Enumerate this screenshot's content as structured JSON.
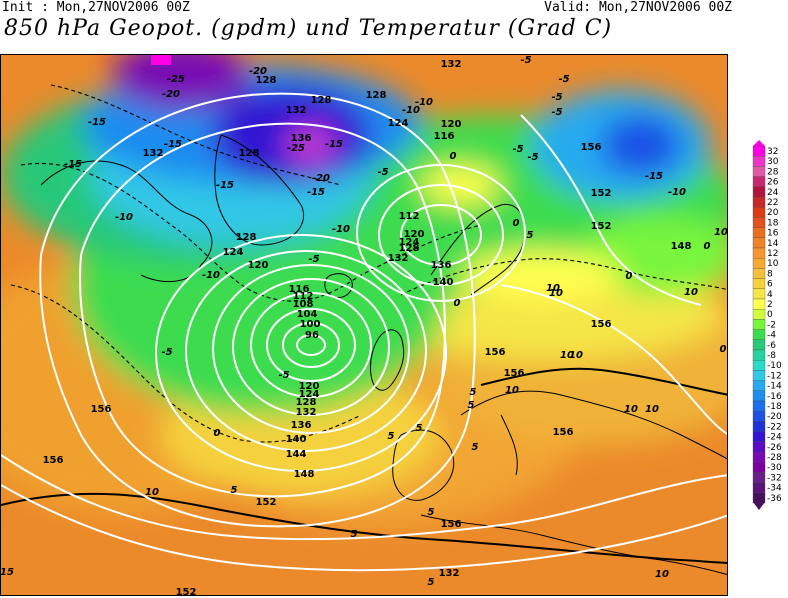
{
  "header": {
    "init": "Init : Mon,27NOV2006 00Z",
    "valid": "Valid: Mon,27NOV2006 00Z",
    "title": "850 hPa Geopot. (gpdm) und Temperatur (Grad C)"
  },
  "legend": {
    "values": [
      "32",
      "30",
      "28",
      "26",
      "24",
      "22",
      "20",
      "18",
      "16",
      "14",
      "12",
      "10",
      "8",
      "6",
      "4",
      "2",
      "0",
      "-2",
      "-4",
      "-6",
      "-8",
      "-10",
      "-12",
      "-14",
      "-16",
      "-18",
      "-20",
      "-22",
      "-24",
      "-26",
      "-28",
      "-30",
      "-32",
      "-34",
      "-36"
    ],
    "colors": [
      "#ff00e6",
      "#f036c8",
      "#e05aa8",
      "#c8286e",
      "#b4143c",
      "#c82828",
      "#dc3c14",
      "#e6501e",
      "#eb6e1e",
      "#f08228",
      "#f59632",
      "#f5aa32",
      "#f5be3c",
      "#f5d23c",
      "#f5e646",
      "#ffff50",
      "#d2ff3c",
      "#78f53c",
      "#3cdc50",
      "#28c878",
      "#28d2a0",
      "#28dcc8",
      "#32c8e6",
      "#28aaf0",
      "#1e8cf0",
      "#1e6eeb",
      "#1e50e6",
      "#1e32dc",
      "#3214d2",
      "#5a0ac8",
      "#780ab4",
      "#7a00a0",
      "#6a1e8c",
      "#5a1478",
      "#46105a"
    ]
  },
  "geopotential_labels": [
    {
      "text": "128"
    },
    {
      "text": "128"
    },
    {
      "text": "132"
    },
    {
      "text": "136"
    },
    {
      "text": "128"
    },
    {
      "text": "132"
    },
    {
      "text": "128"
    },
    {
      "text": "132"
    },
    {
      "text": "124"
    },
    {
      "text": "120"
    },
    {
      "text": "116"
    },
    {
      "text": "112"
    },
    {
      "text": "120"
    },
    {
      "text": "124"
    },
    {
      "text": "128"
    },
    {
      "text": "132"
    },
    {
      "text": "136"
    },
    {
      "text": "140"
    },
    {
      "text": "128"
    },
    {
      "text": "124"
    },
    {
      "text": "120"
    },
    {
      "text": "116"
    },
    {
      "text": "112"
    },
    {
      "text": "108"
    },
    {
      "text": "104"
    },
    {
      "text": "100"
    },
    {
      "text": "96"
    },
    {
      "text": "120"
    },
    {
      "text": "124"
    },
    {
      "text": "128"
    },
    {
      "text": "132"
    },
    {
      "text": "136"
    },
    {
      "text": "140"
    },
    {
      "text": "144"
    },
    {
      "text": "148"
    },
    {
      "text": "152"
    },
    {
      "text": "156"
    },
    {
      "text": "156"
    },
    {
      "text": "152"
    },
    {
      "text": "148"
    },
    {
      "text": "156"
    },
    {
      "text": "156"
    },
    {
      "text": "156"
    },
    {
      "text": "156"
    },
    {
      "text": "152"
    },
    {
      "text": "156"
    },
    {
      "text": "156"
    },
    {
      "text": "152"
    },
    {
      "text": "132"
    }
  ],
  "temperature_labels": [
    {
      "text": "-25"
    },
    {
      "text": "-20"
    },
    {
      "text": "-20"
    },
    {
      "text": "-15"
    },
    {
      "text": "-15"
    },
    {
      "text": "-15"
    },
    {
      "text": "-15"
    },
    {
      "text": "-10"
    },
    {
      "text": "-10"
    },
    {
      "text": "-25"
    },
    {
      "text": "-20"
    },
    {
      "text": "-15"
    },
    {
      "text": "-15"
    },
    {
      "text": "-10"
    },
    {
      "text": "-5"
    },
    {
      "text": "-10"
    },
    {
      "text": "-5"
    },
    {
      "text": "-10"
    },
    {
      "text": "-5"
    },
    {
      "text": "-5"
    },
    {
      "text": "0"
    },
    {
      "text": "-5"
    },
    {
      "text": "-5"
    },
    {
      "text": "-5"
    },
    {
      "text": "-5"
    },
    {
      "text": "-5"
    },
    {
      "text": "-15"
    },
    {
      "text": "-10"
    },
    {
      "text": "0"
    },
    {
      "text": "0"
    },
    {
      "text": "5"
    },
    {
      "text": "0"
    },
    {
      "text": "0"
    },
    {
      "text": "5"
    },
    {
      "text": "10"
    },
    {
      "text": "10"
    },
    {
      "text": "10"
    },
    {
      "text": "10"
    },
    {
      "text": "10"
    },
    {
      "text": "10"
    },
    {
      "text": "10"
    },
    {
      "text": "5"
    },
    {
      "text": "5"
    },
    {
      "text": "5"
    },
    {
      "text": "5"
    },
    {
      "text": "10"
    },
    {
      "text": "5"
    },
    {
      "text": "10"
    },
    {
      "text": "-5"
    },
    {
      "text": "0"
    },
    {
      "text": "5"
    },
    {
      "text": "10"
    },
    {
      "text": "0"
    },
    {
      "text": "5"
    },
    {
      "text": "5"
    },
    {
      "text": "15"
    },
    {
      "text": "10"
    }
  ]
}
